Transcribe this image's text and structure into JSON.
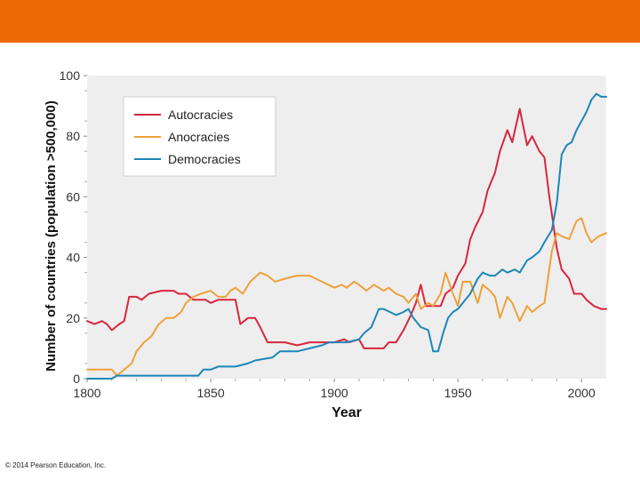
{
  "colors": {
    "top_bar": "#ec6a06",
    "plot_bg": "#eeeeee",
    "autocracies": "#d7263d",
    "anocracies": "#eea13a",
    "democracies": "#1c86b8"
  },
  "footer": {
    "copyright": "© 2014 Pearson Education, Inc."
  },
  "chart_data": {
    "type": "line",
    "xlabel": "Year",
    "ylabel": "Number of countries (population >500,000)",
    "xlim": [
      1800,
      2010
    ],
    "ylim": [
      0,
      100
    ],
    "xticks": [
      1800,
      1850,
      1900,
      1950,
      2000
    ],
    "yticks": [
      0,
      20,
      40,
      60,
      80,
      100
    ],
    "grid": false,
    "legend_position": "top-left",
    "series": [
      {
        "name": "Autocracies",
        "color": "#d7263d",
        "points": [
          [
            1800,
            19
          ],
          [
            1803,
            18
          ],
          [
            1806,
            19
          ],
          [
            1808,
            18
          ],
          [
            1810,
            16
          ],
          [
            1813,
            18
          ],
          [
            1815,
            19
          ],
          [
            1817,
            27
          ],
          [
            1820,
            27
          ],
          [
            1822,
            26
          ],
          [
            1825,
            28
          ],
          [
            1830,
            29
          ],
          [
            1835,
            29
          ],
          [
            1837,
            28
          ],
          [
            1840,
            28
          ],
          [
            1843,
            26
          ],
          [
            1845,
            26
          ],
          [
            1848,
            26
          ],
          [
            1850,
            25
          ],
          [
            1853,
            26
          ],
          [
            1855,
            26
          ],
          [
            1858,
            26
          ],
          [
            1860,
            26
          ],
          [
            1862,
            18
          ],
          [
            1865,
            20
          ],
          [
            1868,
            20
          ],
          [
            1870,
            17
          ],
          [
            1873,
            12
          ],
          [
            1876,
            12
          ],
          [
            1880,
            12
          ],
          [
            1885,
            11
          ],
          [
            1890,
            12
          ],
          [
            1895,
            12
          ],
          [
            1898,
            12
          ],
          [
            1900,
            12
          ],
          [
            1904,
            13
          ],
          [
            1906,
            12
          ],
          [
            1910,
            13
          ],
          [
            1912,
            10
          ],
          [
            1915,
            10
          ],
          [
            1920,
            10
          ],
          [
            1922,
            12
          ],
          [
            1925,
            12
          ],
          [
            1928,
            16
          ],
          [
            1931,
            21
          ],
          [
            1933,
            25
          ],
          [
            1935,
            31
          ],
          [
            1937,
            24
          ],
          [
            1940,
            24
          ],
          [
            1943,
            24
          ],
          [
            1945,
            28
          ],
          [
            1948,
            30
          ],
          [
            1950,
            34
          ],
          [
            1953,
            38
          ],
          [
            1955,
            46
          ],
          [
            1957,
            50
          ],
          [
            1960,
            55
          ],
          [
            1962,
            62
          ],
          [
            1965,
            68
          ],
          [
            1967,
            75
          ],
          [
            1970,
            82
          ],
          [
            1972,
            78
          ],
          [
            1975,
            89
          ],
          [
            1978,
            77
          ],
          [
            1980,
            80
          ],
          [
            1983,
            75
          ],
          [
            1985,
            73
          ],
          [
            1987,
            60
          ],
          [
            1990,
            43
          ],
          [
            1992,
            36
          ],
          [
            1995,
            33
          ],
          [
            1997,
            28
          ],
          [
            2000,
            28
          ],
          [
            2002,
            26
          ],
          [
            2005,
            24
          ],
          [
            2008,
            23
          ],
          [
            2010,
            23
          ]
        ]
      },
      {
        "name": "Anocracies",
        "color": "#eea13a",
        "points": [
          [
            1800,
            3
          ],
          [
            1805,
            3
          ],
          [
            1810,
            3
          ],
          [
            1812,
            1
          ],
          [
            1815,
            3
          ],
          [
            1818,
            5
          ],
          [
            1820,
            9
          ],
          [
            1823,
            12
          ],
          [
            1826,
            14
          ],
          [
            1829,
            18
          ],
          [
            1832,
            20
          ],
          [
            1835,
            20
          ],
          [
            1838,
            22
          ],
          [
            1840,
            25
          ],
          [
            1843,
            27
          ],
          [
            1846,
            28
          ],
          [
            1850,
            29
          ],
          [
            1853,
            27
          ],
          [
            1856,
            27
          ],
          [
            1858,
            29
          ],
          [
            1860,
            30
          ],
          [
            1863,
            28
          ],
          [
            1866,
            32
          ],
          [
            1870,
            35
          ],
          [
            1873,
            34
          ],
          [
            1876,
            32
          ],
          [
            1880,
            33
          ],
          [
            1885,
            34
          ],
          [
            1890,
            34
          ],
          [
            1895,
            32
          ],
          [
            1900,
            30
          ],
          [
            1903,
            31
          ],
          [
            1905,
            30
          ],
          [
            1908,
            32
          ],
          [
            1910,
            31
          ],
          [
            1913,
            29
          ],
          [
            1916,
            31
          ],
          [
            1920,
            29
          ],
          [
            1922,
            30
          ],
          [
            1925,
            28
          ],
          [
            1928,
            27
          ],
          [
            1930,
            25
          ],
          [
            1933,
            28
          ],
          [
            1935,
            23
          ],
          [
            1938,
            25
          ],
          [
            1940,
            24
          ],
          [
            1943,
            28
          ],
          [
            1945,
            35
          ],
          [
            1948,
            28
          ],
          [
            1950,
            24
          ],
          [
            1952,
            32
          ],
          [
            1955,
            32
          ],
          [
            1958,
            25
          ],
          [
            1960,
            31
          ],
          [
            1963,
            29
          ],
          [
            1965,
            27
          ],
          [
            1967,
            20
          ],
          [
            1970,
            27
          ],
          [
            1972,
            25
          ],
          [
            1975,
            19
          ],
          [
            1978,
            24
          ],
          [
            1980,
            22
          ],
          [
            1983,
            24
          ],
          [
            1985,
            25
          ],
          [
            1988,
            42
          ],
          [
            1990,
            48
          ],
          [
            1992,
            47
          ],
          [
            1995,
            46
          ],
          [
            1998,
            52
          ],
          [
            2000,
            53
          ],
          [
            2002,
            48
          ],
          [
            2004,
            45
          ],
          [
            2007,
            47
          ],
          [
            2010,
            48
          ]
        ]
      },
      {
        "name": "Democracies",
        "color": "#1c86b8",
        "points": [
          [
            1800,
            0
          ],
          [
            1810,
            0
          ],
          [
            1812,
            1
          ],
          [
            1820,
            1
          ],
          [
            1830,
            1
          ],
          [
            1840,
            1
          ],
          [
            1845,
            1
          ],
          [
            1847,
            3
          ],
          [
            1850,
            3
          ],
          [
            1853,
            4
          ],
          [
            1860,
            4
          ],
          [
            1865,
            5
          ],
          [
            1868,
            6
          ],
          [
            1875,
            7
          ],
          [
            1878,
            9
          ],
          [
            1885,
            9
          ],
          [
            1890,
            10
          ],
          [
            1895,
            11
          ],
          [
            1898,
            12
          ],
          [
            1902,
            12
          ],
          [
            1905,
            12
          ],
          [
            1910,
            13
          ],
          [
            1912,
            15
          ],
          [
            1915,
            17
          ],
          [
            1918,
            23
          ],
          [
            1920,
            23
          ],
          [
            1925,
            21
          ],
          [
            1928,
            22
          ],
          [
            1930,
            23
          ],
          [
            1932,
            20
          ],
          [
            1935,
            17
          ],
          [
            1938,
            16
          ],
          [
            1940,
            9
          ],
          [
            1942,
            9
          ],
          [
            1944,
            15
          ],
          [
            1946,
            20
          ],
          [
            1948,
            22
          ],
          [
            1950,
            23
          ],
          [
            1952,
            25
          ],
          [
            1955,
            28
          ],
          [
            1958,
            33
          ],
          [
            1960,
            35
          ],
          [
            1963,
            34
          ],
          [
            1965,
            34
          ],
          [
            1968,
            36
          ],
          [
            1970,
            35
          ],
          [
            1973,
            36
          ],
          [
            1975,
            35
          ],
          [
            1978,
            39
          ],
          [
            1980,
            40
          ],
          [
            1983,
            42
          ],
          [
            1985,
            45
          ],
          [
            1988,
            49
          ],
          [
            1990,
            58
          ],
          [
            1992,
            74
          ],
          [
            1994,
            77
          ],
          [
            1996,
            78
          ],
          [
            1998,
            82
          ],
          [
            2000,
            85
          ],
          [
            2002,
            88
          ],
          [
            2004,
            92
          ],
          [
            2006,
            94
          ],
          [
            2008,
            93
          ],
          [
            2010,
            93
          ]
        ]
      }
    ]
  }
}
